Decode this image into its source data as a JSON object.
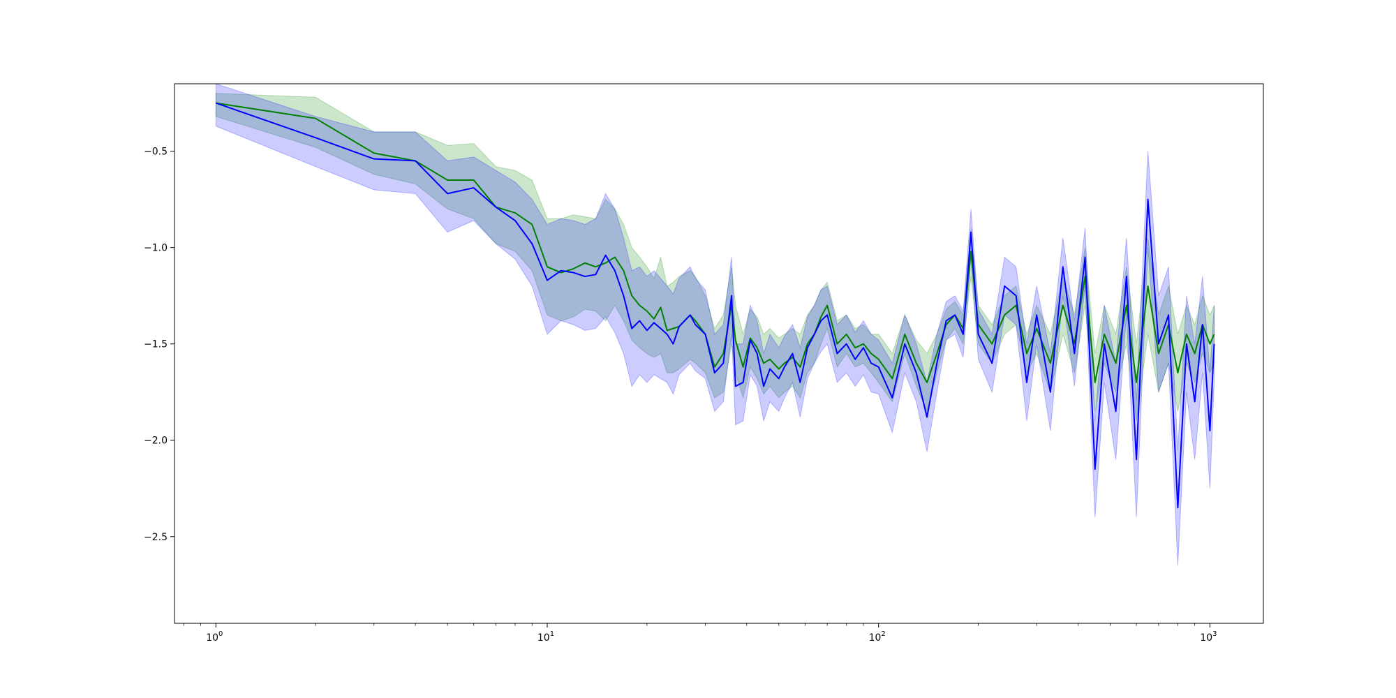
{
  "chart_data": {
    "type": "line",
    "title": "",
    "xlabel": "",
    "ylabel": "",
    "xscale": "log",
    "xlim": [
      0.75,
      1450
    ],
    "ylim": [
      -2.95,
      -0.15
    ],
    "grid": false,
    "legend": "none",
    "x_ticks": [
      {
        "value": 1,
        "base": "10",
        "exp": "0"
      },
      {
        "value": 10,
        "base": "10",
        "exp": "1"
      },
      {
        "value": 100,
        "base": "10",
        "exp": "2"
      },
      {
        "value": 1000,
        "base": "10",
        "exp": "3"
      }
    ],
    "y_ticks": [
      {
        "value": -0.5,
        "label": "−0.5"
      },
      {
        "value": -1.0,
        "label": "−1.0"
      },
      {
        "value": -1.5,
        "label": "−1.5"
      },
      {
        "value": -2.0,
        "label": "−2.0"
      },
      {
        "value": -2.5,
        "label": "−2.5"
      }
    ],
    "series": [
      {
        "color": "#008000",
        "band_color": "#008000",
        "band_opacity": 0.2,
        "x": [
          1,
          2,
          3,
          4,
          5,
          6,
          7,
          8,
          9,
          10,
          11,
          12,
          13,
          14,
          15,
          16,
          17,
          18,
          19,
          20,
          21,
          22,
          23,
          24,
          25,
          27,
          28,
          30,
          32,
          34,
          36,
          37,
          39,
          41,
          43,
          45,
          47,
          50,
          52,
          55,
          58,
          61,
          64,
          67,
          70,
          75,
          80,
          85,
          90,
          95,
          100,
          110,
          120,
          130,
          140,
          150,
          160,
          170,
          180,
          190,
          200,
          220,
          240,
          260,
          280,
          300,
          330,
          360,
          390,
          420,
          450,
          480,
          520,
          560,
          600,
          650,
          700,
          750,
          800,
          850,
          900,
          950,
          1000,
          1030
        ],
        "y": [
          -0.25,
          -0.33,
          -0.51,
          -0.55,
          -0.65,
          -0.65,
          -0.79,
          -0.82,
          -0.88,
          -1.1,
          -1.13,
          -1.11,
          -1.08,
          -1.1,
          -1.08,
          -1.05,
          -1.12,
          -1.25,
          -1.3,
          -1.33,
          -1.37,
          -1.31,
          -1.43,
          -1.42,
          -1.41,
          -1.35,
          -1.38,
          -1.45,
          -1.62,
          -1.55,
          -1.3,
          -1.48,
          -1.62,
          -1.47,
          -1.52,
          -1.6,
          -1.58,
          -1.63,
          -1.6,
          -1.57,
          -1.62,
          -1.5,
          -1.45,
          -1.36,
          -1.3,
          -1.5,
          -1.45,
          -1.52,
          -1.5,
          -1.55,
          -1.58,
          -1.68,
          -1.45,
          -1.6,
          -1.7,
          -1.55,
          -1.4,
          -1.35,
          -1.42,
          -1.02,
          -1.4,
          -1.5,
          -1.35,
          -1.3,
          -1.55,
          -1.42,
          -1.6,
          -1.3,
          -1.5,
          -1.15,
          -1.7,
          -1.45,
          -1.6,
          -1.3,
          -1.7,
          -1.2,
          -1.55,
          -1.4,
          -1.65,
          -1.45,
          -1.55,
          -1.4,
          -1.5,
          -1.45
        ],
        "upper": [
          -0.2,
          -0.22,
          -0.4,
          -0.4,
          -0.47,
          -0.46,
          -0.58,
          -0.6,
          -0.65,
          -0.85,
          -0.85,
          -0.83,
          -0.84,
          -0.85,
          -0.75,
          -0.8,
          -0.88,
          -1.0,
          -1.05,
          -1.1,
          -1.16,
          -1.05,
          -1.2,
          -1.18,
          -1.15,
          -1.12,
          -1.15,
          -1.25,
          -1.42,
          -1.35,
          -1.1,
          -1.3,
          -1.45,
          -1.32,
          -1.36,
          -1.45,
          -1.42,
          -1.47,
          -1.45,
          -1.42,
          -1.45,
          -1.35,
          -1.3,
          -1.22,
          -1.18,
          -1.38,
          -1.35,
          -1.42,
          -1.4,
          -1.45,
          -1.45,
          -1.55,
          -1.35,
          -1.48,
          -1.55,
          -1.45,
          -1.32,
          -1.28,
          -1.35,
          -0.9,
          -1.3,
          -1.4,
          -1.25,
          -1.2,
          -1.45,
          -1.3,
          -1.45,
          -1.15,
          -1.35,
          -1.0,
          -1.55,
          -1.3,
          -1.45,
          -1.1,
          -1.5,
          -0.95,
          -1.35,
          -1.2,
          -1.45,
          -1.3,
          -1.4,
          -1.25,
          -1.35,
          -1.3
        ],
        "lower": [
          -0.32,
          -0.48,
          -0.62,
          -0.67,
          -0.8,
          -0.85,
          -0.98,
          -1.02,
          -1.12,
          -1.35,
          -1.38,
          -1.36,
          -1.32,
          -1.33,
          -1.38,
          -1.3,
          -1.38,
          -1.48,
          -1.52,
          -1.55,
          -1.57,
          -1.55,
          -1.65,
          -1.65,
          -1.63,
          -1.58,
          -1.6,
          -1.65,
          -1.78,
          -1.75,
          -1.5,
          -1.65,
          -1.78,
          -1.62,
          -1.68,
          -1.76,
          -1.72,
          -1.78,
          -1.75,
          -1.72,
          -1.78,
          -1.65,
          -1.6,
          -1.5,
          -1.42,
          -1.62,
          -1.55,
          -1.62,
          -1.6,
          -1.65,
          -1.7,
          -1.8,
          -1.55,
          -1.72,
          -1.85,
          -1.65,
          -1.48,
          -1.42,
          -1.5,
          -1.15,
          -1.5,
          -1.6,
          -1.45,
          -1.4,
          -1.65,
          -1.55,
          -1.75,
          -1.45,
          -1.65,
          -1.3,
          -1.85,
          -1.6,
          -1.75,
          -1.5,
          -1.9,
          -1.45,
          -1.75,
          -1.6,
          -1.85,
          -1.6,
          -1.7,
          -1.55,
          -1.65,
          -1.6
        ]
      },
      {
        "color": "#0000ff",
        "band_color": "#0000ff",
        "band_opacity": 0.2,
        "x": [
          1,
          2,
          3,
          4,
          5,
          6,
          7,
          8,
          9,
          10,
          11,
          12,
          13,
          14,
          15,
          16,
          17,
          18,
          19,
          20,
          21,
          22,
          23,
          24,
          25,
          27,
          28,
          30,
          32,
          34,
          36,
          37,
          39,
          41,
          43,
          45,
          47,
          50,
          52,
          55,
          58,
          61,
          64,
          67,
          70,
          75,
          80,
          85,
          90,
          95,
          100,
          110,
          120,
          130,
          140,
          150,
          160,
          170,
          180,
          190,
          200,
          220,
          240,
          260,
          280,
          300,
          330,
          360,
          390,
          420,
          450,
          480,
          520,
          560,
          600,
          650,
          700,
          750,
          800,
          850,
          900,
          950,
          1000,
          1030
        ],
        "y": [
          -0.25,
          -0.43,
          -0.54,
          -0.55,
          -0.72,
          -0.69,
          -0.79,
          -0.86,
          -0.98,
          -1.17,
          -1.12,
          -1.13,
          -1.15,
          -1.14,
          -1.04,
          -1.12,
          -1.25,
          -1.42,
          -1.38,
          -1.43,
          -1.39,
          -1.42,
          -1.45,
          -1.5,
          -1.41,
          -1.35,
          -1.4,
          -1.45,
          -1.65,
          -1.6,
          -1.25,
          -1.72,
          -1.7,
          -1.48,
          -1.55,
          -1.72,
          -1.63,
          -1.68,
          -1.62,
          -1.55,
          -1.7,
          -1.52,
          -1.45,
          -1.38,
          -1.35,
          -1.55,
          -1.5,
          -1.58,
          -1.52,
          -1.6,
          -1.62,
          -1.78,
          -1.5,
          -1.65,
          -1.88,
          -1.6,
          -1.38,
          -1.35,
          -1.45,
          -0.92,
          -1.45,
          -1.6,
          -1.2,
          -1.25,
          -1.7,
          -1.35,
          -1.75,
          -1.1,
          -1.55,
          -1.05,
          -2.15,
          -1.5,
          -1.85,
          -1.15,
          -2.1,
          -0.75,
          -1.5,
          -1.35,
          -2.35,
          -1.5,
          -1.8,
          -1.4,
          -1.95,
          -1.5
        ],
        "upper": [
          -0.15,
          -0.32,
          -0.4,
          -0.4,
          -0.55,
          -0.53,
          -0.6,
          -0.66,
          -0.75,
          -0.88,
          -0.85,
          -0.86,
          -0.88,
          -0.85,
          -0.72,
          -0.8,
          -0.95,
          -1.12,
          -1.1,
          -1.15,
          -1.12,
          -1.16,
          -1.2,
          -1.24,
          -1.16,
          -1.1,
          -1.16,
          -1.22,
          -1.45,
          -1.4,
          -1.05,
          -1.5,
          -1.5,
          -1.3,
          -1.38,
          -1.55,
          -1.45,
          -1.52,
          -1.46,
          -1.4,
          -1.52,
          -1.36,
          -1.3,
          -1.22,
          -1.2,
          -1.4,
          -1.35,
          -1.44,
          -1.38,
          -1.45,
          -1.48,
          -1.6,
          -1.35,
          -1.5,
          -1.7,
          -1.45,
          -1.28,
          -1.25,
          -1.33,
          -0.8,
          -1.32,
          -1.45,
          -1.05,
          -1.1,
          -1.5,
          -1.2,
          -1.55,
          -0.95,
          -1.38,
          -0.9,
          -1.9,
          -1.3,
          -1.6,
          -0.95,
          -1.8,
          -0.5,
          -1.25,
          -1.1,
          -2.05,
          -1.25,
          -1.5,
          -1.15,
          -1.65,
          -1.3
        ],
        "lower": [
          -0.37,
          -0.58,
          -0.7,
          -0.72,
          -0.92,
          -0.86,
          -0.98,
          -1.06,
          -1.2,
          -1.45,
          -1.38,
          -1.4,
          -1.43,
          -1.42,
          -1.36,
          -1.44,
          -1.55,
          -1.72,
          -1.66,
          -1.7,
          -1.66,
          -1.68,
          -1.7,
          -1.76,
          -1.66,
          -1.6,
          -1.64,
          -1.68,
          -1.85,
          -1.8,
          -1.45,
          -1.92,
          -1.9,
          -1.66,
          -1.72,
          -1.9,
          -1.8,
          -1.85,
          -1.78,
          -1.7,
          -1.88,
          -1.68,
          -1.6,
          -1.54,
          -1.5,
          -1.7,
          -1.65,
          -1.72,
          -1.66,
          -1.75,
          -1.76,
          -1.96,
          -1.65,
          -1.8,
          -2.06,
          -1.75,
          -1.48,
          -1.45,
          -1.57,
          -1.05,
          -1.58,
          -1.75,
          -1.35,
          -1.4,
          -1.9,
          -1.5,
          -1.95,
          -1.25,
          -1.72,
          -1.2,
          -2.4,
          -1.7,
          -2.1,
          -1.35,
          -2.4,
          -1.0,
          -1.75,
          -1.6,
          -2.65,
          -1.75,
          -2.1,
          -1.65,
          -2.25,
          -1.7
        ]
      }
    ]
  }
}
